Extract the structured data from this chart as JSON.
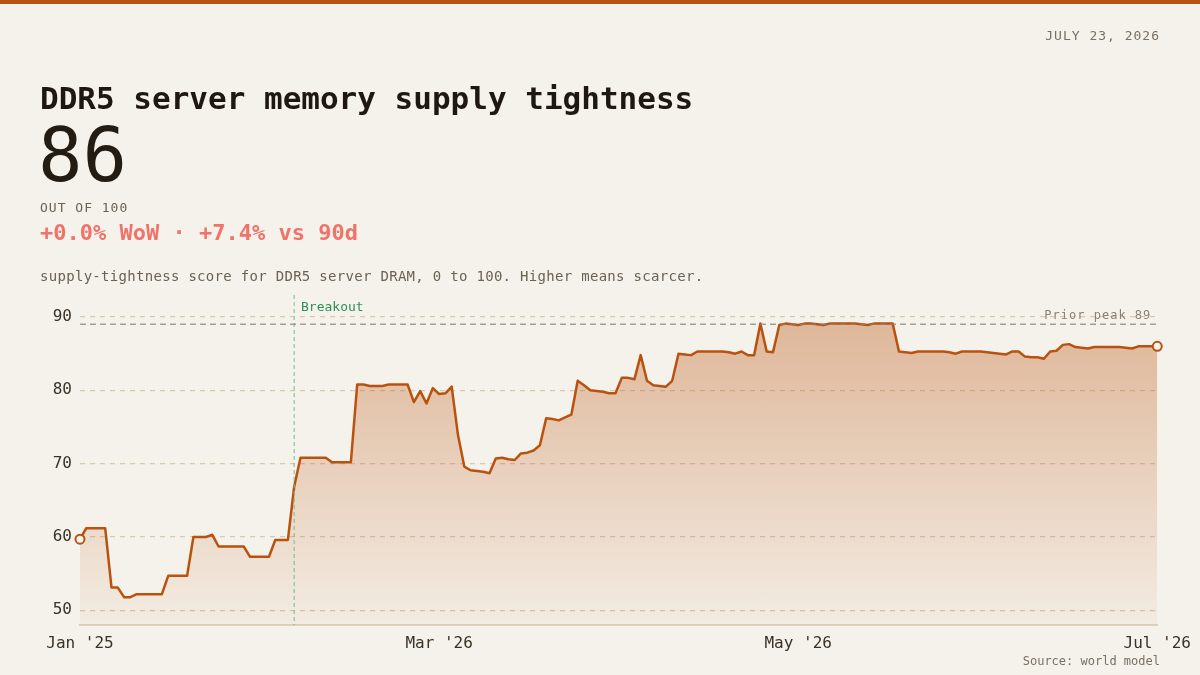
{
  "chart_data": {
    "type": "area",
    "title": "DDR5 server memory supply tightness",
    "subtitle": "supply-tightness score for DDR5 server DRAM, 0 to 100. Higher means scarcer.",
    "annotations": [
      "JULY 23, 2026",
      "86",
      "OUT OF 100",
      "+0.0% WoW · +7.4% vs 90d",
      "Source: world model",
      "Breakout"
    ],
    "categories": [
      "Jan '25",
      null,
      null,
      null,
      null,
      null,
      null,
      null,
      null,
      null,
      null,
      null,
      null,
      null,
      null,
      null,
      null,
      null,
      null,
      null,
      null,
      null,
      null,
      null,
      null,
      null,
      null,
      null,
      null,
      null,
      null,
      null,
      null,
      null,
      null,
      null,
      null,
      null,
      null,
      null,
      null,
      null,
      null,
      null,
      null,
      null,
      null,
      null,
      null,
      null,
      null,
      null,
      null,
      null,
      null,
      null,
      null,
      "Mar '26",
      null,
      null,
      null,
      null,
      null,
      null,
      null,
      null,
      null,
      null,
      null,
      null,
      null,
      null,
      null,
      null,
      null,
      null,
      null,
      null,
      null,
      null,
      null,
      null,
      null,
      null,
      null,
      null,
      null,
      null,
      null,
      null,
      null,
      null,
      null,
      null,
      null,
      null,
      null,
      null,
      null,
      null,
      null,
      null,
      null,
      null,
      null,
      null,
      null,
      null,
      null,
      null,
      null,
      null,
      null,
      null,
      "May '26",
      null,
      null,
      null,
      null,
      null,
      null,
      null,
      null,
      null,
      null,
      null,
      null,
      null,
      null,
      null,
      null,
      null,
      null,
      null,
      null,
      null,
      null,
      null,
      null,
      null,
      null,
      null,
      null,
      null,
      null,
      null,
      null,
      null,
      null,
      null,
      null,
      null,
      null,
      null,
      null,
      null,
      null,
      null,
      null,
      null,
      null,
      null,
      null,
      null,
      null,
      null,
      null,
      null,
      null,
      null,
      null,
      "Jul '26"
    ],
    "series": [
      {
        "color": "#b8520e",
        "values": [
          59.7,
          61.2,
          61.2,
          61.2,
          61.2,
          53.1,
          53.1,
          51.8,
          51.8,
          52.2,
          52.2,
          52.2,
          52.2,
          52.2,
          54.7,
          54.7,
          54.7,
          54.7,
          60.0,
          60.0,
          60.0,
          60.3,
          58.7,
          58.7,
          58.7,
          58.7,
          58.7,
          57.3,
          57.3,
          57.3,
          57.3,
          59.6,
          59.6,
          59.6,
          66.9,
          70.8,
          70.8,
          70.8,
          70.8,
          70.8,
          70.2,
          70.2,
          70.2,
          70.2,
          80.8,
          80.8,
          80.6,
          80.6,
          80.6,
          80.8,
          80.8,
          80.8,
          80.8,
          78.4,
          79.9,
          78.2,
          80.3,
          79.5,
          79.6,
          80.5,
          73.9,
          69.6,
          69.1,
          69.0,
          68.9,
          68.7,
          70.7,
          70.8,
          70.6,
          70.5,
          71.4,
          71.5,
          71.8,
          72.5,
          76.2,
          76.1,
          75.9,
          76.3,
          76.7,
          81.3,
          80.7,
          80.0,
          79.9,
          79.8,
          79.6,
          79.6,
          81.7,
          81.7,
          81.5,
          84.8,
          81.3,
          80.7,
          80.6,
          80.5,
          81.3,
          85.0,
          84.9,
          84.8,
          85.3,
          85.3,
          85.3,
          85.3,
          85.3,
          85.2,
          85.0,
          85.3,
          84.8,
          84.8,
          89.1,
          85.3,
          85.2,
          88.9,
          89.1,
          89.0,
          88.9,
          89.1,
          89.1,
          89.0,
          88.9,
          89.1,
          89.1,
          89.1,
          89.1,
          89.1,
          89.0,
          88.9,
          89.1,
          89.1,
          89.1,
          89.1,
          85.3,
          85.2,
          85.1,
          85.3,
          85.3,
          85.3,
          85.3,
          85.3,
          85.2,
          85.0,
          85.3,
          85.3,
          85.3,
          85.3,
          85.2,
          85.1,
          85.0,
          84.9,
          85.3,
          85.3,
          84.6,
          84.5,
          84.5,
          84.3,
          85.3,
          85.4,
          86.2,
          86.3,
          85.9,
          85.8,
          85.7,
          85.9,
          85.9,
          85.9,
          85.9,
          85.9,
          85.8,
          85.7,
          86.0,
          86.0,
          86.0,
          86.0
        ]
      },
      {
        "type": "scatter",
        "color": "#b8520e",
        "marker": "circle",
        "x": [
          "Jan '25",
          "Jul '26"
        ],
        "values": [
          59.7,
          86.0
        ]
      }
    ],
    "ylim": [
      48,
      93
    ],
    "yticks": [
      50,
      60,
      70,
      80,
      90
    ],
    "grid": "y",
    "ref_lines": [
      {
        "axis": "y",
        "value": 89,
        "label": "Prior peak 89",
        "color": "#8c8172",
        "line_style": "dashed"
      }
    ]
  }
}
